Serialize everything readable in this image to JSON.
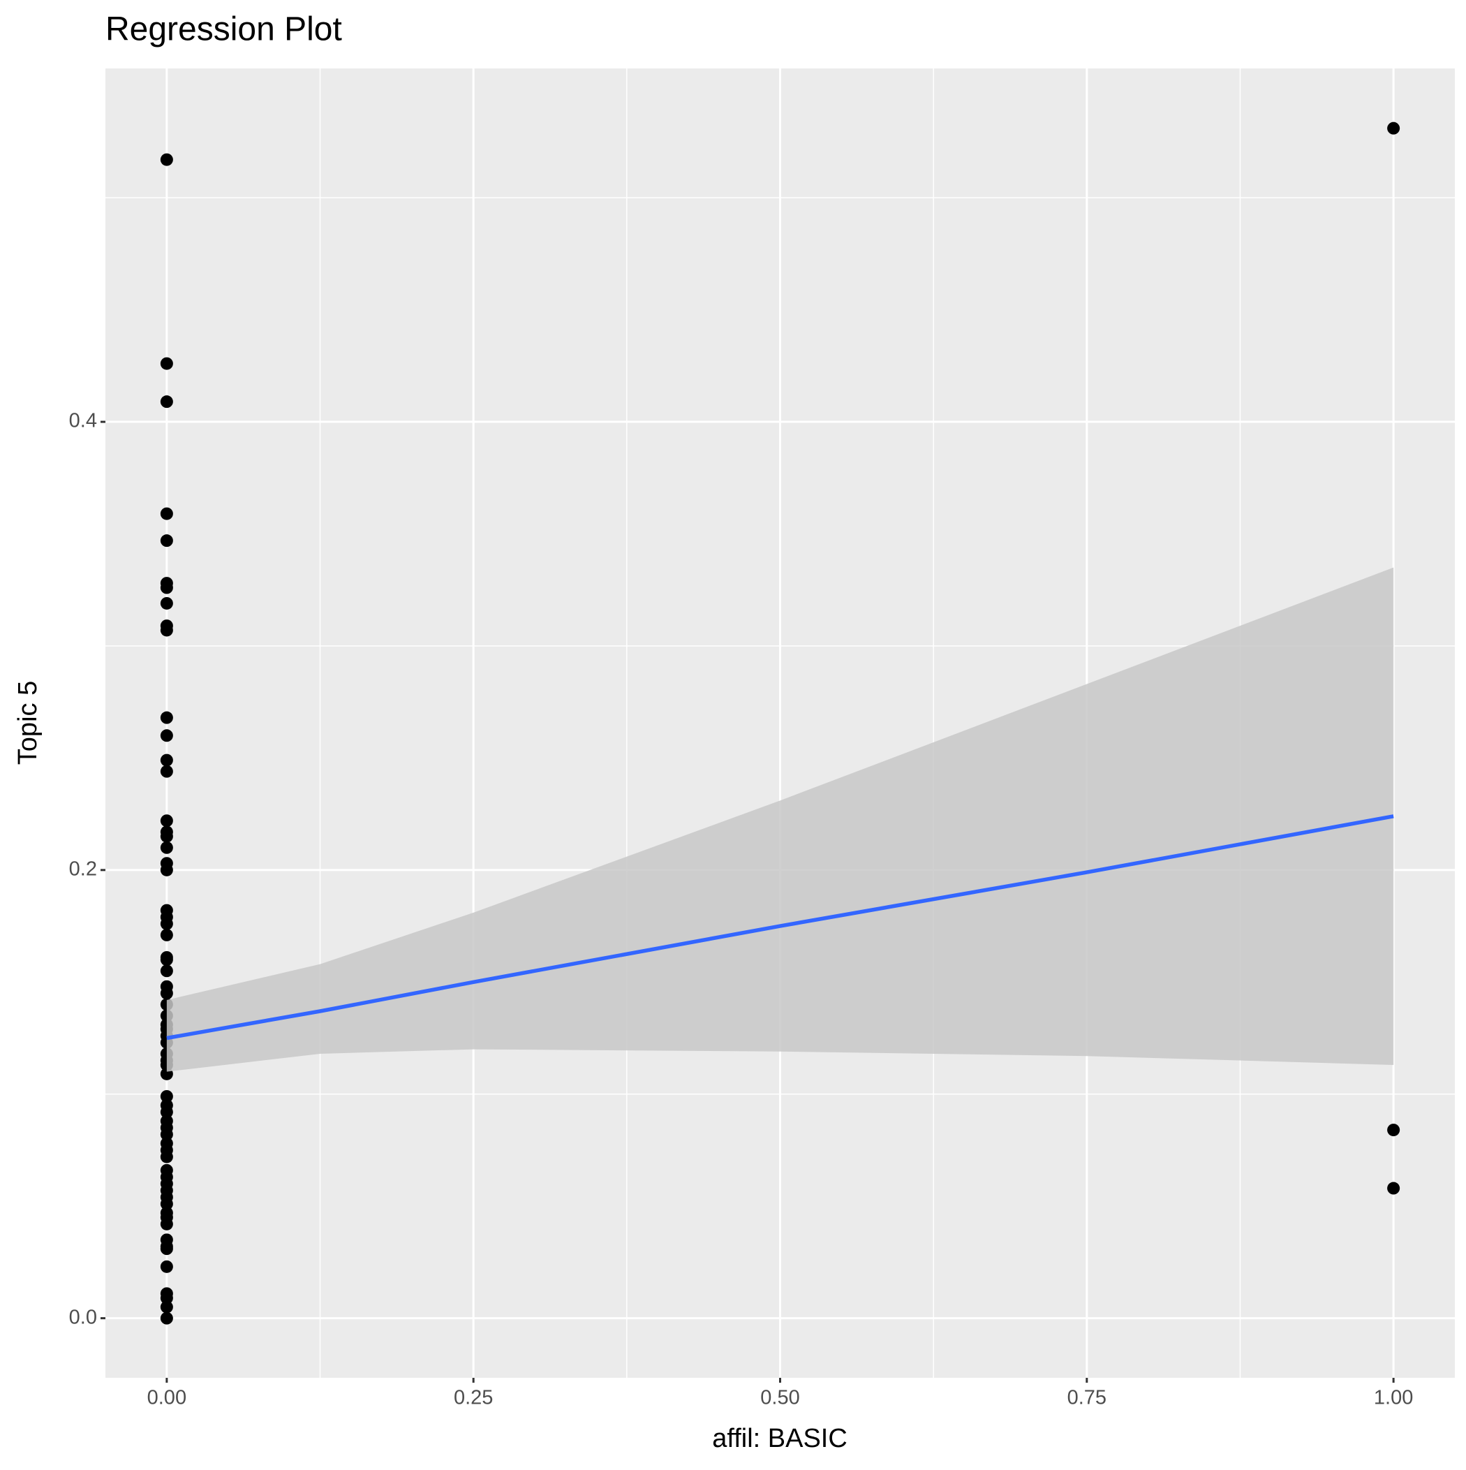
{
  "chart_data": {
    "type": "scatter",
    "title": "Regression Plot",
    "x_label": "affil: BASIC",
    "y_label": "Topic 5",
    "xlim": [
      -0.05,
      1.05
    ],
    "ylim": [
      -0.0266,
      0.5577
    ],
    "xticks": [
      {
        "value": 0,
        "label": "0.00"
      },
      {
        "value": 0.25,
        "label": "0.25"
      },
      {
        "value": 0.5,
        "label": "0.50"
      },
      {
        "value": 0.75,
        "label": "0.75"
      },
      {
        "value": 1,
        "label": "1.00"
      }
    ],
    "yticks": [
      {
        "value": 0,
        "label": "0.0"
      },
      {
        "value": 0.2,
        "label": "0.2"
      },
      {
        "value": 0.4,
        "label": "0.4"
      }
    ],
    "x_minor_grid": [
      0.125,
      0.375,
      0.625,
      0.875
    ],
    "y_minor_grid": [
      0.1,
      0.3,
      0.5
    ],
    "grid": true,
    "points": {
      "color": "#000000",
      "x": [
        0,
        0,
        0,
        0,
        0,
        0,
        0,
        0,
        0,
        0,
        0,
        0,
        0,
        0,
        0,
        0,
        0,
        0,
        0,
        0,
        0,
        0,
        0,
        0,
        0,
        0,
        0,
        0,
        0,
        0,
        0,
        0,
        0,
        0,
        0,
        0,
        0,
        0,
        0,
        0,
        0,
        0,
        0,
        0,
        0,
        0,
        0,
        0,
        0,
        0,
        0,
        0,
        0,
        0,
        0,
        0,
        0,
        0,
        0,
        0,
        0,
        0,
        0,
        0,
        0,
        1,
        1,
        1
      ],
      "y": [
        0.517,
        0.426,
        0.409,
        0.359,
        0.347,
        0.328,
        0.326,
        0.319,
        0.309,
        0.307,
        0.268,
        0.26,
        0.249,
        0.244,
        0.222,
        0.217,
        0.215,
        0.21,
        0.203,
        0.2,
        0.182,
        0.179,
        0.176,
        0.171,
        0.161,
        0.16,
        0.155,
        0.148,
        0.145,
        0.14,
        0.135,
        0.131,
        0.129,
        0.126,
        0.123,
        0.118,
        0.115,
        0.113,
        0.109,
        0.099,
        0.095,
        0.092,
        0.088,
        0.085,
        0.082,
        0.078,
        0.075,
        0.072,
        0.066,
        0.063,
        0.06,
        0.057,
        0.054,
        0.051,
        0.047,
        0.045,
        0.042,
        0.035,
        0.032,
        0.031,
        0.023,
        0.011,
        0.009,
        0.005,
        0,
        0.531,
        0.084,
        0.058
      ]
    },
    "smooth": {
      "color": "#3366ff",
      "fill": "#c8c8c8",
      "x": [
        0,
        0.125,
        0.25,
        0.5,
        0.75,
        1
      ],
      "y": [
        0.125,
        0.137,
        0.15,
        0.175,
        0.199,
        0.224
      ],
      "ymin": [
        0.11,
        0.118,
        0.12,
        0.119,
        0.117,
        0.113
      ],
      "ymax": [
        0.142,
        0.158,
        0.181,
        0.231,
        0.283,
        0.335
      ]
    }
  }
}
